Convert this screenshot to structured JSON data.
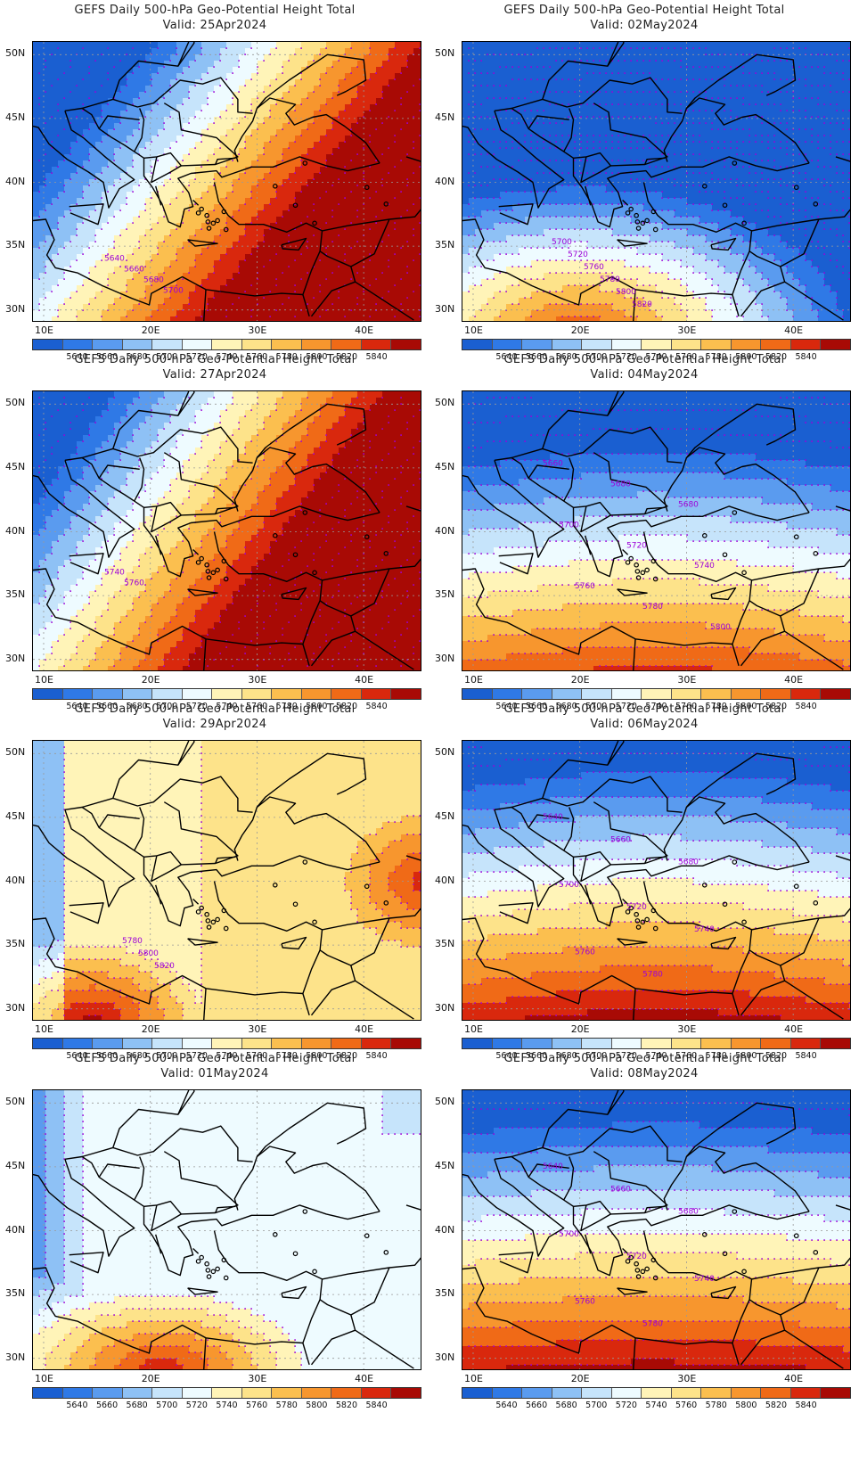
{
  "palette": [
    "#1a5fd1",
    "#2f79e6",
    "#5a9bef",
    "#8ec1f5",
    "#c6e4fb",
    "#eefbff",
    "#fff4b8",
    "#fde38a",
    "#fbbf4f",
    "#f7962e",
    "#f06a17",
    "#d9280d",
    "#a80a05"
  ],
  "contour_line_color": "#9d00d8",
  "colorbar_labels": [
    "5640",
    "5660",
    "5680",
    "5700",
    "5720",
    "5740",
    "5760",
    "5780",
    "5800",
    "5820",
    "5840"
  ],
  "y_axis_labels": [
    "50N",
    "45N",
    "40N",
    "35N",
    "30N"
  ],
  "x_axis_labels": [
    "10E",
    "20E",
    "30E",
    "40E"
  ],
  "panels": [
    {
      "title": "GEFS Daily 500-hPa Geo-Potential Height Total",
      "valid": "Valid: 25Apr2024",
      "mode": "diag",
      "params": [
        -0.55,
        1.25
      ],
      "contour_labels": [
        "5640",
        "5660",
        "5680",
        "5700"
      ]
    },
    {
      "title": "GEFS Daily 500-hPa Geo-Potential Height Total",
      "valid": "Valid: 02May2024",
      "mode": "southhot",
      "params": [
        0.3,
        0
      ],
      "contour_labels": [
        "5700",
        "5720",
        "5760",
        "5780",
        "5800",
        "5820"
      ]
    },
    {
      "title": "GEFS Daily 500-hPa Geo-Potential Height Total",
      "valid": "Valid: 27Apr2024",
      "mode": "diag",
      "params": [
        -0.35,
        1.1
      ],
      "contour_labels": [
        "5740",
        "5760"
      ]
    },
    {
      "title": "GEFS Daily 500-hPa Geo-Potential Height Total",
      "valid": "Valid: 04May2024",
      "mode": "zonal",
      "params": [
        0.62,
        1
      ],
      "contour_labels": [
        "5660",
        "5680",
        "5680",
        "5700",
        "5720",
        "5740",
        "5760",
        "5780",
        "5800"
      ]
    },
    {
      "title": "GEFS Daily 500-hPa Geo-Potential Height Total",
      "valid": "Valid: 29Apr2024",
      "mode": "warm",
      "params": [
        0,
        0
      ],
      "contour_labels": [
        "5780",
        "5800",
        "5820"
      ]
    },
    {
      "title": "GEFS Daily 500-hPa Geo-Potential Height Total",
      "valid": "Valid: 06May2024",
      "mode": "zonal",
      "params": [
        0.52,
        1
      ],
      "contour_labels": [
        "5640",
        "5660",
        "5680",
        "5700",
        "5720",
        "5740",
        "5760",
        "5780"
      ]
    },
    {
      "title": "GEFS Daily 500-hPa Geo-Potential Height Total",
      "valid": "Valid: 01May2024",
      "mode": "ridge",
      "params": [
        0,
        0
      ],
      "contour_labels": []
    },
    {
      "title": "GEFS Daily 500-hPa Geo-Potential Height Total",
      "valid": "Valid: 08May2024",
      "mode": "zonal",
      "params": [
        0.5,
        0.55
      ],
      "contour_labels": [
        "5640",
        "5660",
        "5680",
        "5700",
        "5720",
        "5740",
        "5760",
        "5780"
      ]
    }
  ]
}
